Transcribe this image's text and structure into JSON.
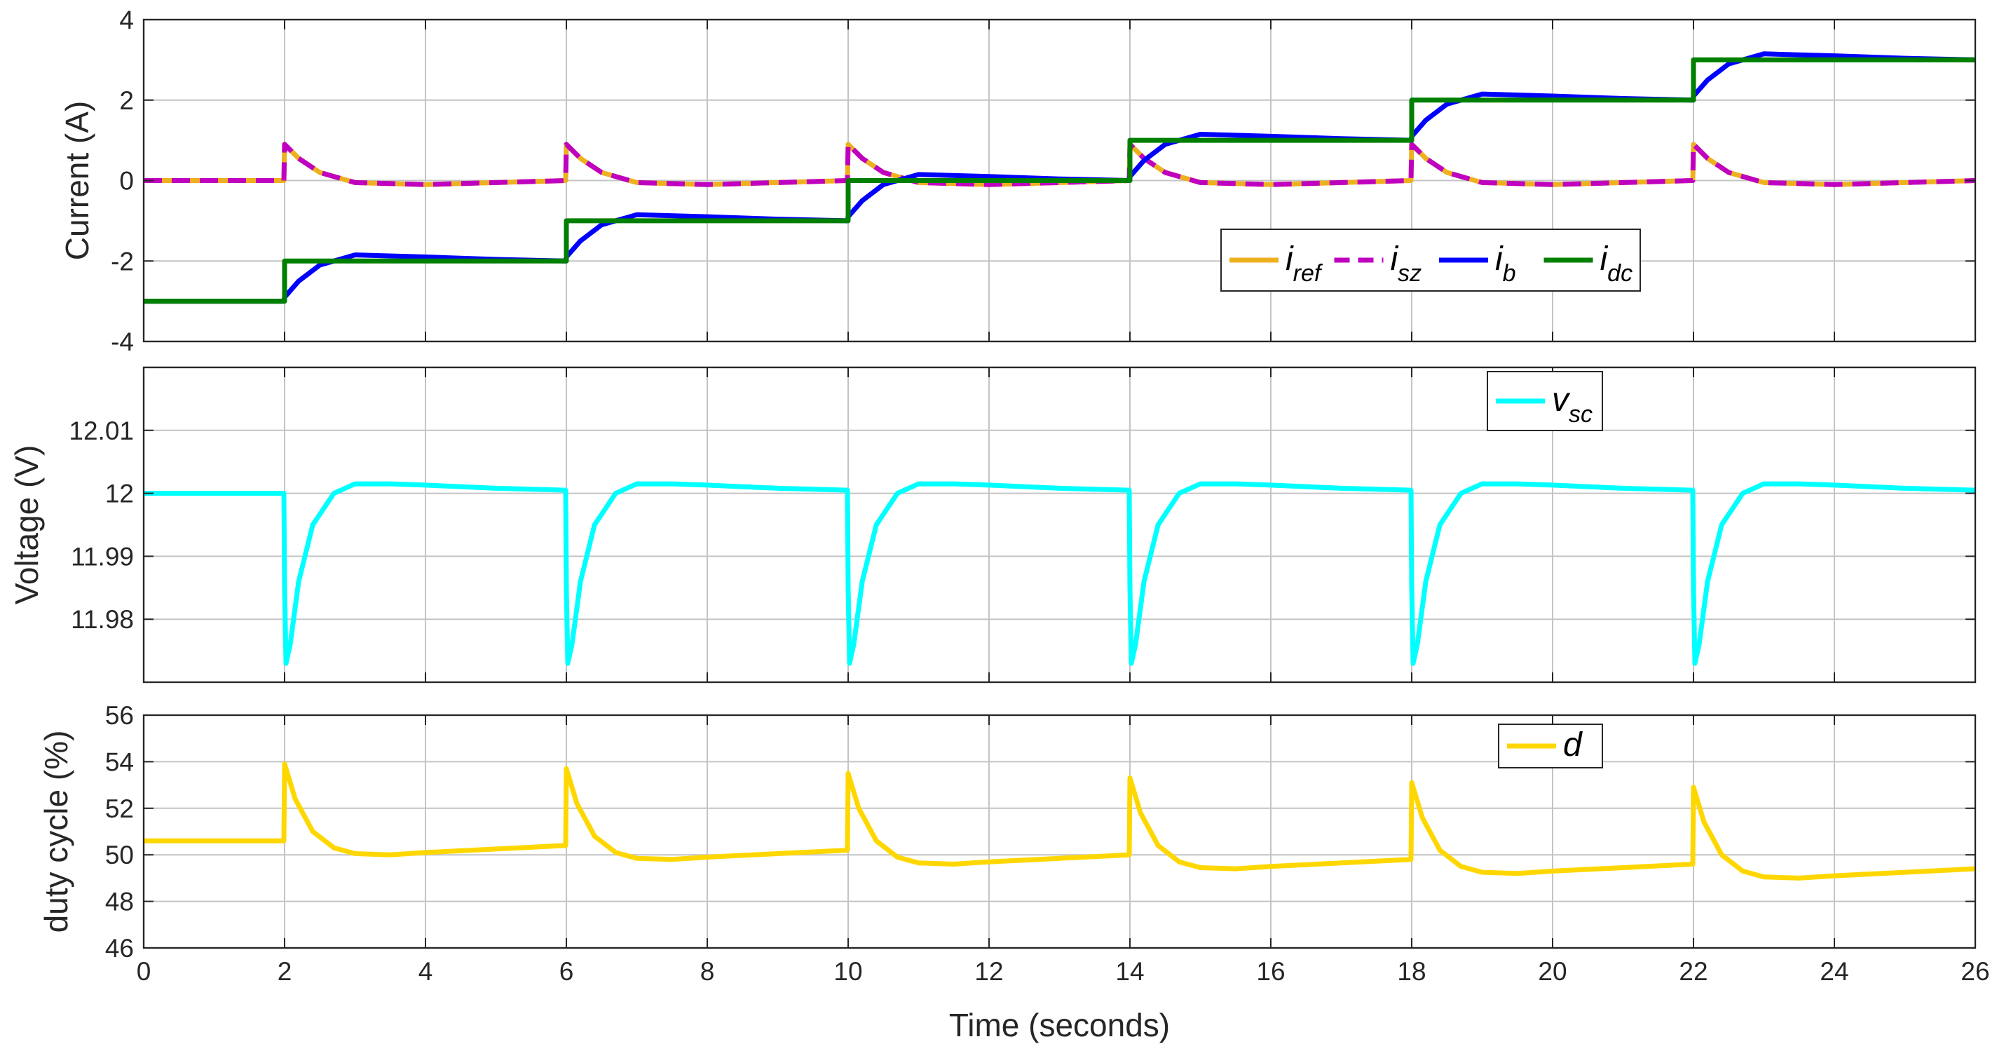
{
  "chart_data": [
    {
      "type": "line",
      "ylabel": "Current (A)",
      "xlim": [
        0,
        26
      ],
      "ylim": [
        -4,
        4
      ],
      "xticks": [
        0,
        2,
        4,
        6,
        8,
        10,
        12,
        14,
        16,
        18,
        20,
        22,
        24,
        26
      ],
      "yticks": [
        -4,
        -2,
        0,
        2,
        4
      ],
      "grid": true,
      "legend": {
        "location": "inside-right",
        "orientation": "horizontal"
      },
      "series": [
        {
          "name": "i_ref",
          "symbol": "i",
          "sub": "ref",
          "color": "#EDB120",
          "dash": "solid",
          "x": [
            0,
            1.99,
            2,
            2.2,
            2.5,
            3,
            4,
            5,
            5.99,
            6,
            6.2,
            6.5,
            7,
            8,
            9,
            9.99,
            10,
            10.2,
            10.5,
            11,
            12,
            13,
            13.99,
            14,
            14.2,
            14.5,
            15,
            16,
            17,
            17.99,
            18,
            18.2,
            18.5,
            19,
            20,
            21,
            21.99,
            22,
            22.2,
            22.5,
            23,
            24,
            25,
            26
          ],
          "y": [
            0,
            0,
            0.9,
            0.55,
            0.2,
            -0.05,
            -0.1,
            -0.05,
            0,
            0.9,
            0.55,
            0.2,
            -0.05,
            -0.1,
            -0.05,
            0,
            0.9,
            0.55,
            0.2,
            -0.05,
            -0.1,
            -0.05,
            0,
            0.9,
            0.55,
            0.2,
            -0.05,
            -0.1,
            -0.05,
            0,
            0.9,
            0.55,
            0.2,
            -0.05,
            -0.1,
            -0.05,
            0,
            0.9,
            0.55,
            0.2,
            -0.05,
            -0.1,
            -0.05,
            0
          ]
        },
        {
          "name": "i_sz",
          "symbol": "i",
          "sub": "sz",
          "color": "#BF00BF",
          "dash": "dashed",
          "x": [
            0,
            1.99,
            2,
            2.2,
            2.5,
            3,
            4,
            5,
            5.99,
            6,
            6.2,
            6.5,
            7,
            8,
            9,
            9.99,
            10,
            10.2,
            10.5,
            11,
            12,
            13,
            13.99,
            14,
            14.2,
            14.5,
            15,
            16,
            17,
            17.99,
            18,
            18.2,
            18.5,
            19,
            20,
            21,
            21.99,
            22,
            22.2,
            22.5,
            23,
            24,
            25,
            26
          ],
          "y": [
            0,
            0,
            0.9,
            0.55,
            0.2,
            -0.05,
            -0.1,
            -0.05,
            0,
            0.9,
            0.55,
            0.2,
            -0.05,
            -0.1,
            -0.05,
            0,
            0.9,
            0.55,
            0.2,
            -0.05,
            -0.1,
            -0.05,
            0,
            0.9,
            0.55,
            0.2,
            -0.05,
            -0.1,
            -0.05,
            0,
            0.9,
            0.55,
            0.2,
            -0.05,
            -0.1,
            -0.05,
            0,
            0.9,
            0.55,
            0.2,
            -0.05,
            -0.1,
            -0.05,
            0
          ]
        },
        {
          "name": "i_b",
          "symbol": "i",
          "sub": "b",
          "color": "#0000FF",
          "dash": "solid",
          "x": [
            0,
            1.99,
            2,
            2.2,
            2.5,
            3,
            4,
            5,
            5.99,
            6,
            6.2,
            6.5,
            7,
            8,
            9,
            9.99,
            10,
            10.2,
            10.5,
            11,
            12,
            13,
            13.99,
            14,
            14.2,
            14.5,
            15,
            16,
            17,
            17.99,
            18,
            18.2,
            18.5,
            19,
            20,
            21,
            21.99,
            22,
            22.2,
            22.5,
            23,
            24,
            25,
            26
          ],
          "y": [
            -3,
            -3,
            -2.9,
            -2.5,
            -2.1,
            -1.85,
            -1.9,
            -1.96,
            -2,
            -1.9,
            -1.5,
            -1.1,
            -0.85,
            -0.9,
            -0.96,
            -1,
            -0.9,
            -0.5,
            -0.1,
            0.15,
            0.1,
            0.04,
            0,
            0.1,
            0.5,
            0.9,
            1.15,
            1.1,
            1.04,
            1,
            1.1,
            1.5,
            1.9,
            2.15,
            2.1,
            2.04,
            2,
            2.1,
            2.5,
            2.9,
            3.15,
            3.1,
            3.04,
            3
          ]
        },
        {
          "name": "i_dc",
          "symbol": "i",
          "sub": "dc",
          "color": "#007F00",
          "dash": "solid",
          "x": [
            0,
            2,
            2,
            6,
            6,
            10,
            10,
            14,
            14,
            18,
            18,
            22,
            22,
            26
          ],
          "y": [
            -3,
            -3,
            -2,
            -2,
            -1,
            -1,
            0,
            0,
            1,
            1,
            2,
            2,
            3,
            3
          ]
        }
      ]
    },
    {
      "type": "line",
      "ylabel": "Voltage (V)",
      "xlim": [
        0,
        26
      ],
      "ylim": [
        11.97,
        12.02
      ],
      "xticks": [
        0,
        2,
        4,
        6,
        8,
        10,
        12,
        14,
        16,
        18,
        20,
        22,
        24,
        26
      ],
      "yticks": [
        11.98,
        11.99,
        12,
        12.01
      ],
      "ytick_labels": [
        "11.98",
        "11.99",
        "12",
        "12.01"
      ],
      "grid": true,
      "legend": {
        "location": "top-right"
      },
      "series": [
        {
          "name": "v_sc",
          "symbol": "v",
          "sub": "sc",
          "color": "#00FFFF",
          "dash": "solid",
          "x": [
            0,
            1.99,
            2,
            2.02,
            2.08,
            2.2,
            2.4,
            2.7,
            3,
            3.5,
            4,
            5,
            5.99,
            6,
            6.02,
            6.08,
            6.2,
            6.4,
            6.7,
            7,
            7.5,
            8,
            9,
            9.99,
            10,
            10.02,
            10.08,
            10.2,
            10.4,
            10.7,
            11,
            11.5,
            12,
            13,
            13.99,
            14,
            14.02,
            14.08,
            14.2,
            14.4,
            14.7,
            15,
            15.5,
            16,
            17,
            17.99,
            18,
            18.02,
            18.08,
            18.2,
            18.4,
            18.7,
            19,
            19.5,
            20,
            21,
            21.99,
            22,
            22.02,
            22.08,
            22.2,
            22.4,
            22.7,
            23,
            23.5,
            24,
            25,
            26
          ],
          "y": [
            12,
            12,
            11.985,
            11.973,
            11.976,
            11.986,
            11.995,
            12.0,
            12.0015,
            12.0015,
            12.0013,
            12.0008,
            12.0005,
            11.985,
            11.973,
            11.976,
            11.986,
            11.995,
            12.0,
            12.0015,
            12.0015,
            12.0013,
            12.0008,
            12.0005,
            11.985,
            11.973,
            11.976,
            11.986,
            11.995,
            12.0,
            12.0015,
            12.0015,
            12.0013,
            12.0008,
            12.0005,
            11.985,
            11.973,
            11.976,
            11.986,
            11.995,
            12.0,
            12.0015,
            12.0015,
            12.0013,
            12.0008,
            12.0005,
            11.985,
            11.973,
            11.976,
            11.986,
            11.995,
            12.0,
            12.0015,
            12.0015,
            12.0013,
            12.0008,
            12.0005,
            11.985,
            11.973,
            11.976,
            11.986,
            11.995,
            12.0,
            12.0015,
            12.0015,
            12.0013,
            12.0008,
            12.0005
          ]
        }
      ]
    },
    {
      "type": "line",
      "ylabel": "duty cycle (%)",
      "xlabel": "Time (seconds)",
      "xlim": [
        0,
        26
      ],
      "ylim": [
        46,
        56
      ],
      "xticks": [
        0,
        2,
        4,
        6,
        8,
        10,
        12,
        14,
        16,
        18,
        20,
        22,
        24,
        26
      ],
      "yticks": [
        46,
        48,
        50,
        52,
        54,
        56
      ],
      "grid": true,
      "legend": {
        "location": "top-right"
      },
      "series": [
        {
          "name": "d",
          "symbol": "d",
          "sub": "",
          "color": "#FFD700",
          "dash": "solid",
          "x": [
            0,
            1.99,
            2,
            2.15,
            2.4,
            2.7,
            3,
            3.5,
            4,
            5,
            5.99,
            6,
            6.15,
            6.4,
            6.7,
            7,
            7.5,
            8,
            9,
            9.99,
            10,
            10.15,
            10.4,
            10.7,
            11,
            11.5,
            12,
            13,
            13.99,
            14,
            14.15,
            14.4,
            14.7,
            15,
            15.5,
            16,
            17,
            17.99,
            18,
            18.15,
            18.4,
            18.7,
            19,
            19.5,
            20,
            21,
            21.99,
            22,
            22.15,
            22.4,
            22.7,
            23,
            23.5,
            24,
            25,
            26
          ],
          "y": [
            50.6,
            50.6,
            53.9,
            52.4,
            51.0,
            50.3,
            50.05,
            50.0,
            50.1,
            50.25,
            50.4,
            53.7,
            52.2,
            50.8,
            50.1,
            49.85,
            49.8,
            49.9,
            50.05,
            50.2,
            53.5,
            52.0,
            50.6,
            49.9,
            49.65,
            49.6,
            49.7,
            49.85,
            50.0,
            53.3,
            51.8,
            50.4,
            49.7,
            49.45,
            49.4,
            49.5,
            49.65,
            49.8,
            53.1,
            51.6,
            50.2,
            49.5,
            49.25,
            49.2,
            49.3,
            49.45,
            49.6,
            52.9,
            51.4,
            50.0,
            49.3,
            49.05,
            49.0,
            49.1,
            49.25,
            49.4
          ]
        }
      ]
    }
  ]
}
